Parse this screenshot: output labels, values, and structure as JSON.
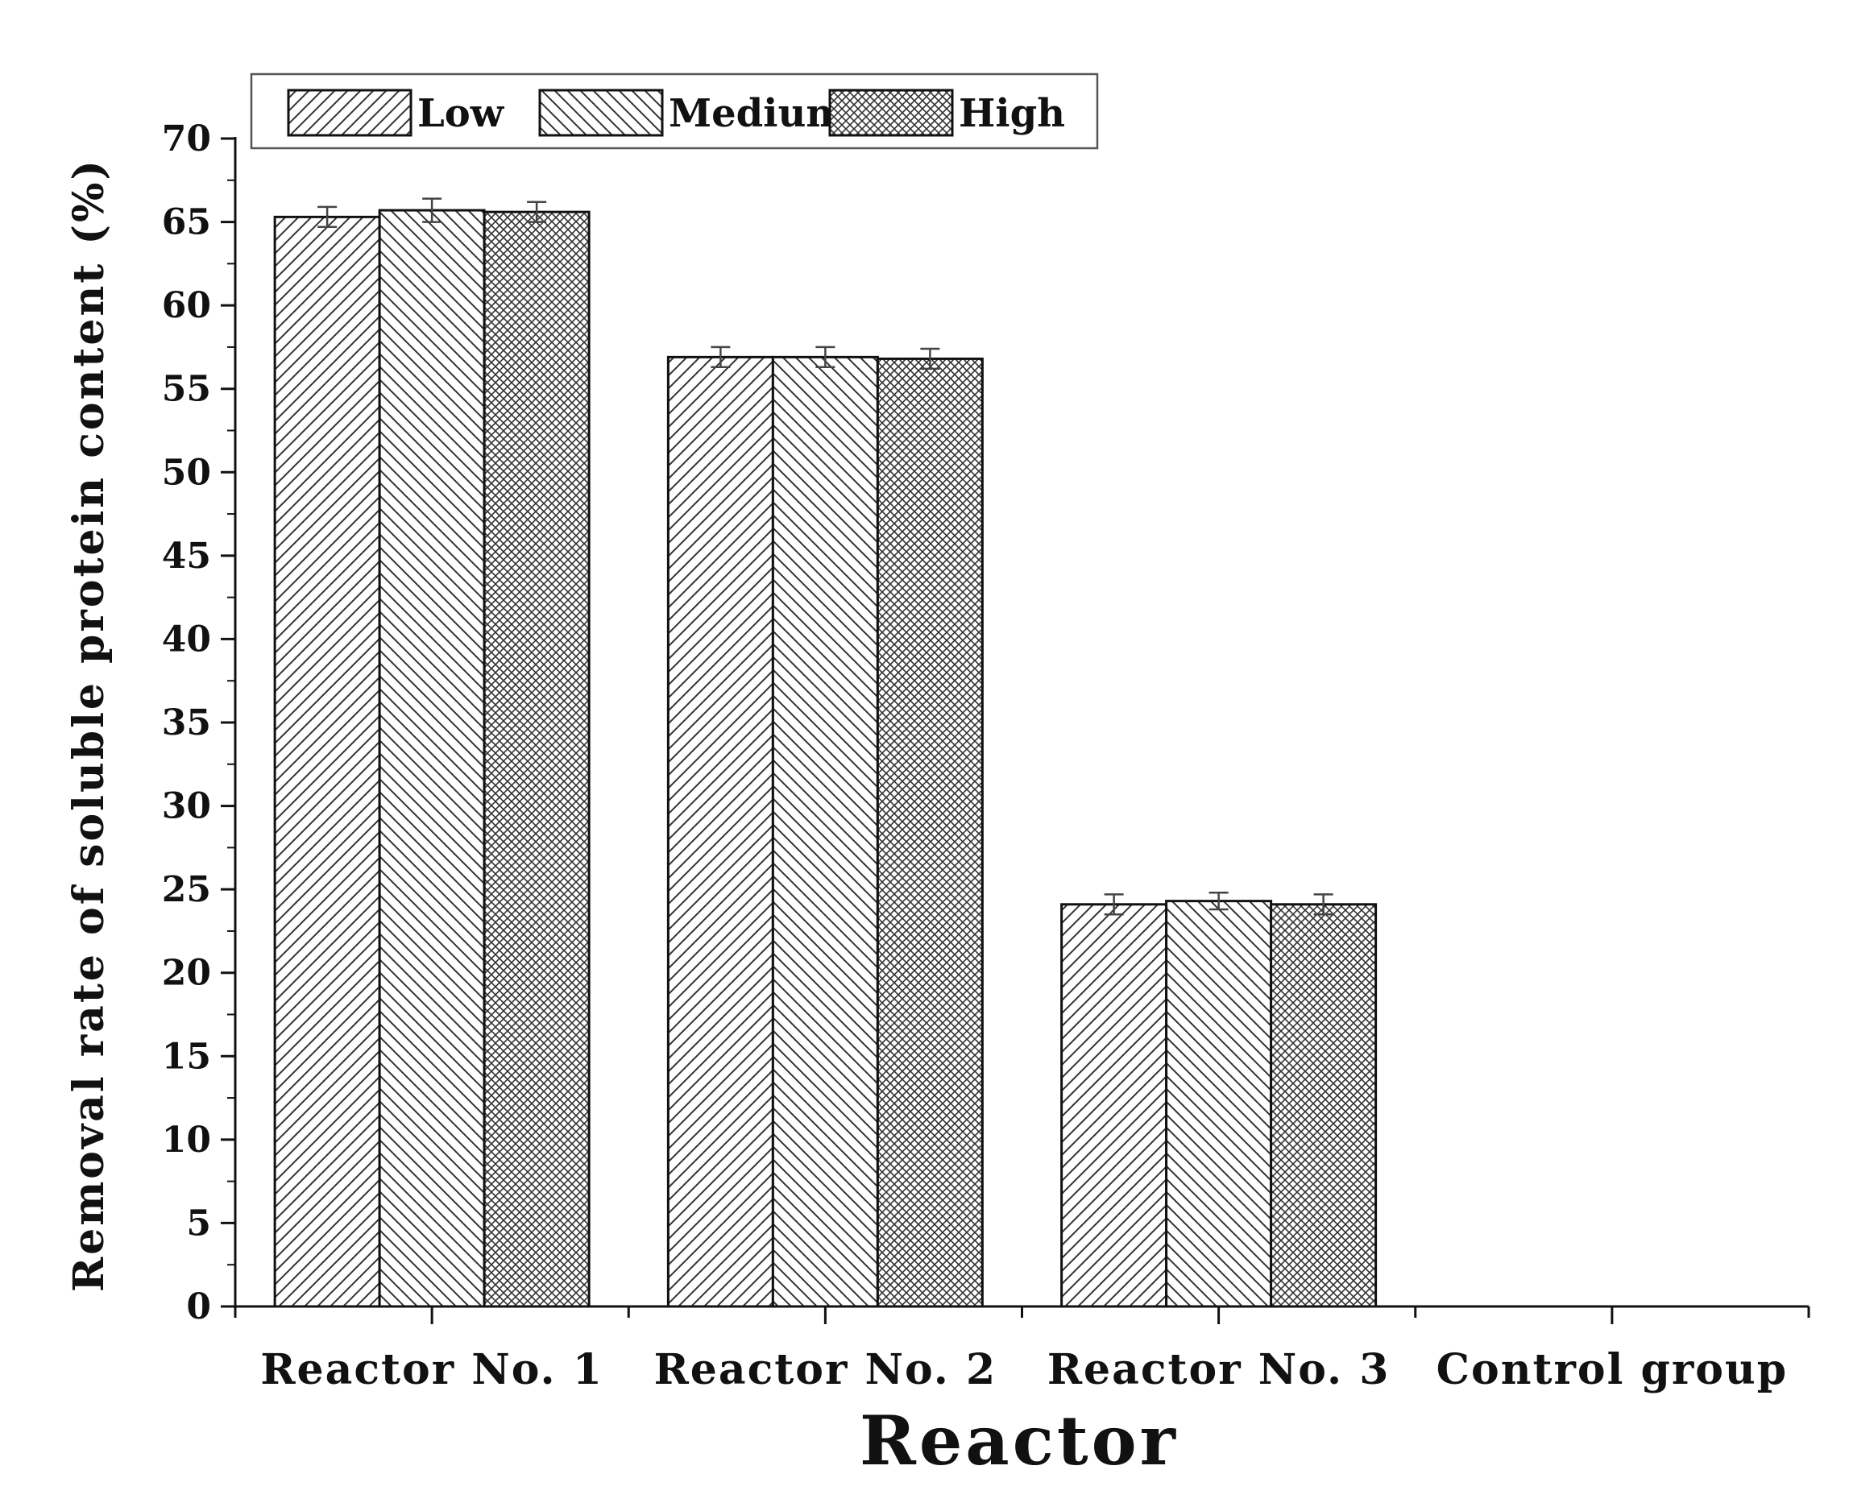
{
  "chart_data": {
    "type": "bar",
    "categories": [
      "Reactor No. 1",
      "Reactor No. 2",
      "Reactor No. 3",
      "Control group"
    ],
    "series": [
      {
        "name": "Low",
        "values": [
          65.3,
          56.9,
          24.1,
          0
        ],
        "errors": [
          0.6,
          0.6,
          0.6,
          0
        ],
        "pattern": "diagonal-forward"
      },
      {
        "name": "Medium",
        "values": [
          65.7,
          56.9,
          24.3,
          0
        ],
        "errors": [
          0.7,
          0.6,
          0.5,
          0
        ],
        "pattern": "diagonal-backward"
      },
      {
        "name": "High",
        "values": [
          65.6,
          56.8,
          24.1,
          0
        ],
        "errors": [
          0.6,
          0.6,
          0.6,
          0
        ],
        "pattern": "crosshatch"
      }
    ],
    "xlabel": "Reactor",
    "ylabel": "Removal rate of soluble protein content (%)",
    "ylim": [
      0,
      70
    ],
    "yticks": [
      0,
      5,
      10,
      15,
      20,
      25,
      30,
      35,
      40,
      45,
      50,
      55,
      60,
      65,
      70
    ],
    "grid": false,
    "legend_position": "top"
  }
}
